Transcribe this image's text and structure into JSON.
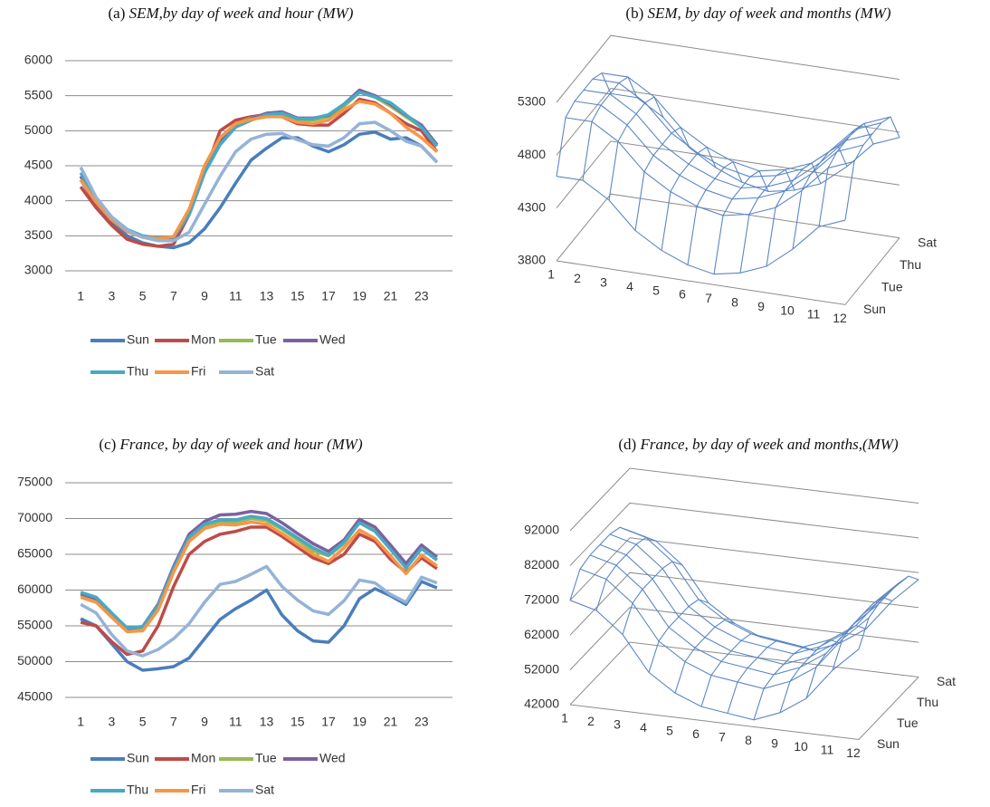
{
  "chart_data": [
    {
      "type": "line",
      "label": "(a)",
      "title": "SEM,by day of week and hour (MW)",
      "x": [
        1,
        2,
        3,
        4,
        5,
        6,
        7,
        8,
        9,
        10,
        11,
        12,
        13,
        14,
        15,
        16,
        17,
        18,
        19,
        20,
        21,
        22,
        23,
        24
      ],
      "xlim": [
        0,
        25
      ],
      "xticks": [
        1,
        3,
        5,
        7,
        9,
        11,
        13,
        15,
        17,
        19,
        21,
        23
      ],
      "ylim": [
        3000,
        6000
      ],
      "yticks": [
        3000,
        3500,
        4000,
        4500,
        5000,
        5500,
        6000
      ],
      "grid": true,
      "legend": "bottom",
      "series": [
        {
          "name": "Sun",
          "color": "#4a7ebb",
          "values": [
            4300,
            3950,
            3700,
            3500,
            3400,
            3350,
            3330,
            3400,
            3600,
            3900,
            4250,
            4580,
            4750,
            4900,
            4900,
            4780,
            4700,
            4800,
            4950,
            4980,
            4880,
            4900,
            4780,
            4550
          ]
        },
        {
          "name": "Mon",
          "color": "#be4b48",
          "values": [
            4200,
            3900,
            3650,
            3450,
            3380,
            3350,
            3380,
            3800,
            4400,
            5000,
            5150,
            5200,
            5230,
            5200,
            5100,
            5080,
            5080,
            5250,
            5450,
            5400,
            5250,
            5100,
            5000,
            4700
          ]
        },
        {
          "name": "Tue",
          "color": "#98b954",
          "values": [
            4350,
            4000,
            3750,
            3580,
            3480,
            3450,
            3480,
            3850,
            4500,
            4900,
            5100,
            5180,
            5230,
            5230,
            5150,
            5150,
            5200,
            5350,
            5550,
            5480,
            5350,
            5200,
            5050,
            4800
          ]
        },
        {
          "name": "Wed",
          "color": "#7d60a0",
          "values": [
            4350,
            4000,
            3750,
            3570,
            3480,
            3450,
            3470,
            3820,
            4450,
            4850,
            5080,
            5170,
            5250,
            5270,
            5180,
            5180,
            5220,
            5380,
            5580,
            5500,
            5380,
            5220,
            5080,
            4800
          ]
        },
        {
          "name": "Thu",
          "color": "#46aac5",
          "values": [
            4400,
            4020,
            3770,
            3590,
            3500,
            3470,
            3480,
            3800,
            4400,
            4800,
            5050,
            5150,
            5230,
            5250,
            5170,
            5170,
            5230,
            5380,
            5550,
            5480,
            5400,
            5230,
            5050,
            4780
          ]
        },
        {
          "name": "Fri",
          "color": "#f79646",
          "values": [
            4300,
            3980,
            3730,
            3560,
            3480,
            3460,
            3490,
            3880,
            4500,
            4900,
            5100,
            5160,
            5200,
            5200,
            5120,
            5100,
            5150,
            5300,
            5420,
            5380,
            5250,
            5050,
            4900,
            4700
          ]
        },
        {
          "name": "Sat",
          "color": "#95b3d7",
          "values": [
            4480,
            4050,
            3770,
            3580,
            3480,
            3430,
            3430,
            3550,
            3950,
            4350,
            4700,
            4880,
            4950,
            4960,
            4870,
            4800,
            4780,
            4900,
            5100,
            5120,
            5000,
            4850,
            4780,
            4550
          ]
        }
      ]
    },
    {
      "type": "surface",
      "label": "(b)",
      "title": "SEM, by day of week and months (MW)",
      "x": [
        1,
        2,
        3,
        4,
        5,
        6,
        7,
        8,
        9,
        10,
        11,
        12
      ],
      "y": [
        "Sun",
        null,
        "Tue",
        null,
        "Thu",
        null,
        "Sat"
      ],
      "zlim": [
        3800,
        5300
      ],
      "zticks": [
        3800,
        4300,
        4800,
        5300
      ],
      "color": "#5b87c5",
      "z": [
        [
          4600,
          4600,
          4450,
          4200,
          4050,
          3950,
          3900,
          3950,
          4050,
          4250,
          4500,
          4600
        ],
        [
          5050,
          5050,
          4900,
          4650,
          4500,
          4400,
          4350,
          4400,
          4500,
          4700,
          4950,
          5050
        ],
        [
          5100,
          5100,
          4950,
          4700,
          4550,
          4450,
          4400,
          4450,
          4550,
          4750,
          5000,
          5100
        ],
        [
          5100,
          5100,
          4950,
          4700,
          4550,
          4450,
          4400,
          4450,
          4550,
          4750,
          5000,
          5100
        ],
        [
          5100,
          5100,
          4950,
          4700,
          4550,
          4450,
          4400,
          4450,
          4550,
          4750,
          5000,
          5100
        ],
        [
          5050,
          5050,
          4900,
          4650,
          4500,
          4400,
          4350,
          4400,
          4500,
          4700,
          4950,
          5050
        ],
        [
          4750,
          4750,
          4600,
          4350,
          4200,
          4100,
          4050,
          4100,
          4200,
          4400,
          4650,
          4750
        ]
      ]
    },
    {
      "type": "line",
      "label": "(c)",
      "title": "France, by day of week and hour (MW)",
      "x": [
        1,
        2,
        3,
        4,
        5,
        6,
        7,
        8,
        9,
        10,
        11,
        12,
        13,
        14,
        15,
        16,
        17,
        18,
        19,
        20,
        21,
        22,
        23,
        24
      ],
      "xlim": [
        0,
        25
      ],
      "xticks": [
        1,
        3,
        5,
        7,
        9,
        11,
        13,
        15,
        17,
        19,
        21,
        23
      ],
      "ylim": [
        45000,
        75000
      ],
      "yticks": [
        45000,
        50000,
        55000,
        60000,
        65000,
        70000,
        75000
      ],
      "grid": true,
      "legend": "bottom",
      "series": [
        {
          "name": "Sun",
          "color": "#4a7ebb",
          "values": [
            56000,
            55000,
            52500,
            50000,
            48800,
            49000,
            49300,
            50500,
            53200,
            55900,
            57400,
            58600,
            60000,
            56500,
            54300,
            52900,
            52700,
            55000,
            58800,
            60200,
            59200,
            58000,
            61200,
            60300
          ]
        },
        {
          "name": "Mon",
          "color": "#be4b48",
          "values": [
            55500,
            55000,
            52800,
            51000,
            51500,
            55000,
            60500,
            65000,
            66800,
            67800,
            68200,
            68800,
            68800,
            67500,
            66000,
            64500,
            63700,
            65000,
            67800,
            66800,
            64300,
            62500,
            64500,
            63000
          ]
        },
        {
          "name": "Tue",
          "color": "#98b954",
          "values": [
            59300,
            58700,
            56500,
            54500,
            54700,
            57800,
            63000,
            67300,
            69000,
            69500,
            69500,
            70000,
            69700,
            68500,
            67000,
            65500,
            64800,
            66500,
            69500,
            68300,
            65800,
            63200,
            65800,
            64200
          ]
        },
        {
          "name": "Wed",
          "color": "#7d60a0",
          "values": [
            59500,
            58800,
            56500,
            54600,
            54900,
            58000,
            63300,
            67800,
            69600,
            70500,
            70600,
            71000,
            70700,
            69400,
            67900,
            66500,
            65400,
            67000,
            69900,
            68800,
            66300,
            63700,
            66300,
            64600
          ]
        },
        {
          "name": "Thu",
          "color": "#46aac5",
          "values": [
            59700,
            59000,
            56800,
            54700,
            54900,
            57800,
            63000,
            67400,
            69200,
            69800,
            69800,
            70300,
            70000,
            68700,
            67300,
            65900,
            64900,
            66700,
            69400,
            68200,
            65700,
            63100,
            65800,
            64200
          ]
        },
        {
          "name": "Fri",
          "color": "#f79646",
          "values": [
            59000,
            58300,
            56200,
            54200,
            54300,
            57200,
            62500,
            66800,
            68600,
            69200,
            69100,
            69500,
            69200,
            67900,
            66400,
            65000,
            64000,
            65900,
            68400,
            67200,
            64800,
            62300,
            64900,
            63400
          ]
        },
        {
          "name": "Sat",
          "color": "#95b3d7",
          "values": [
            58000,
            56800,
            53800,
            51500,
            50800,
            51700,
            53200,
            55300,
            58300,
            60800,
            61200,
            62200,
            63300,
            60500,
            58600,
            57100,
            56600,
            58500,
            61400,
            61000,
            59400,
            58300,
            61800,
            61000
          ]
        }
      ]
    },
    {
      "type": "surface",
      "label": "(d)",
      "title": "France, by day of week and months,(MW)",
      "x": [
        1,
        2,
        3,
        4,
        5,
        6,
        7,
        8,
        9,
        10,
        11,
        12
      ],
      "y": [
        "Sun",
        null,
        "Tue",
        null,
        "Thu",
        null,
        "Sat"
      ],
      "zlim": [
        42000,
        92000
      ],
      "zticks": [
        42000,
        52000,
        62000,
        72000,
        82000,
        92000
      ],
      "color": "#5b87c5",
      "z": [
        [
          72000,
          70000,
          64000,
          54000,
          49000,
          46000,
          45000,
          44000,
          47000,
          52000,
          61000,
          68000
        ],
        [
          78000,
          76000,
          70000,
          60000,
          55000,
          52000,
          51000,
          50000,
          53000,
          58000,
          67000,
          74000
        ],
        [
          79000,
          77000,
          71000,
          61000,
          56000,
          53000,
          52000,
          51000,
          54000,
          59000,
          68000,
          75000
        ],
        [
          79000,
          77000,
          71000,
          61000,
          56000,
          53000,
          52000,
          51000,
          54000,
          59000,
          68000,
          75000
        ],
        [
          79000,
          77000,
          71000,
          61000,
          56000,
          53000,
          52000,
          51000,
          54000,
          59000,
          68000,
          75000
        ],
        [
          78000,
          76000,
          70000,
          60000,
          55000,
          52000,
          51000,
          50000,
          53000,
          58000,
          67000,
          74000
        ],
        [
          74000,
          72000,
          66000,
          56000,
          51000,
          48000,
          47000,
          46000,
          49000,
          54000,
          63000,
          70000
        ]
      ]
    }
  ]
}
